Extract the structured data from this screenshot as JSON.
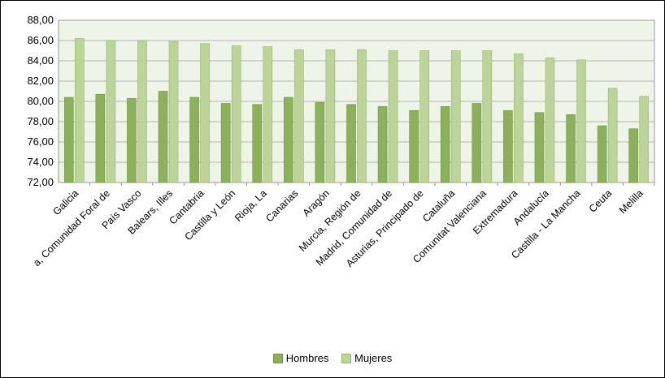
{
  "chart_data": {
    "type": "bar",
    "categories": [
      "Galicia",
      "a, Comunidad Foral de",
      "País Vasco",
      "Balears, Illes",
      "Cantabria",
      "Castilla y León",
      "Rioja, La",
      "Canarias",
      "Aragón",
      "Murcia, Región de",
      "Madrid, Comunidad de",
      "Asturias, Principado de",
      "Cataluña",
      "Comunitat Valenciana",
      "Extremadura",
      "Andalucía",
      "Castilla - La Mancha",
      "Ceuta",
      "Melilla"
    ],
    "series": [
      {
        "name": "Hombres",
        "color": "#8db05a",
        "values": [
          80.4,
          80.7,
          80.3,
          81.0,
          80.4,
          79.8,
          79.7,
          80.4,
          79.9,
          79.7,
          79.5,
          79.1,
          79.5,
          79.8,
          79.1,
          78.9,
          78.7,
          77.6,
          77.3
        ]
      },
      {
        "name": "Mujeres",
        "color": "#bcd39a",
        "values": [
          86.2,
          86.0,
          86.0,
          85.9,
          85.7,
          85.5,
          85.4,
          85.1,
          85.1,
          85.1,
          85.0,
          85.0,
          85.0,
          85.0,
          84.7,
          84.3,
          84.1,
          81.3,
          80.5
        ]
      }
    ],
    "yticks": [
      "72,00",
      "74,00",
      "76,00",
      "78,00",
      "80,00",
      "82,00",
      "84,00",
      "86,00",
      "88,00"
    ],
    "ylim": [
      72,
      88
    ],
    "grid": true,
    "legend_position": "bottom"
  }
}
